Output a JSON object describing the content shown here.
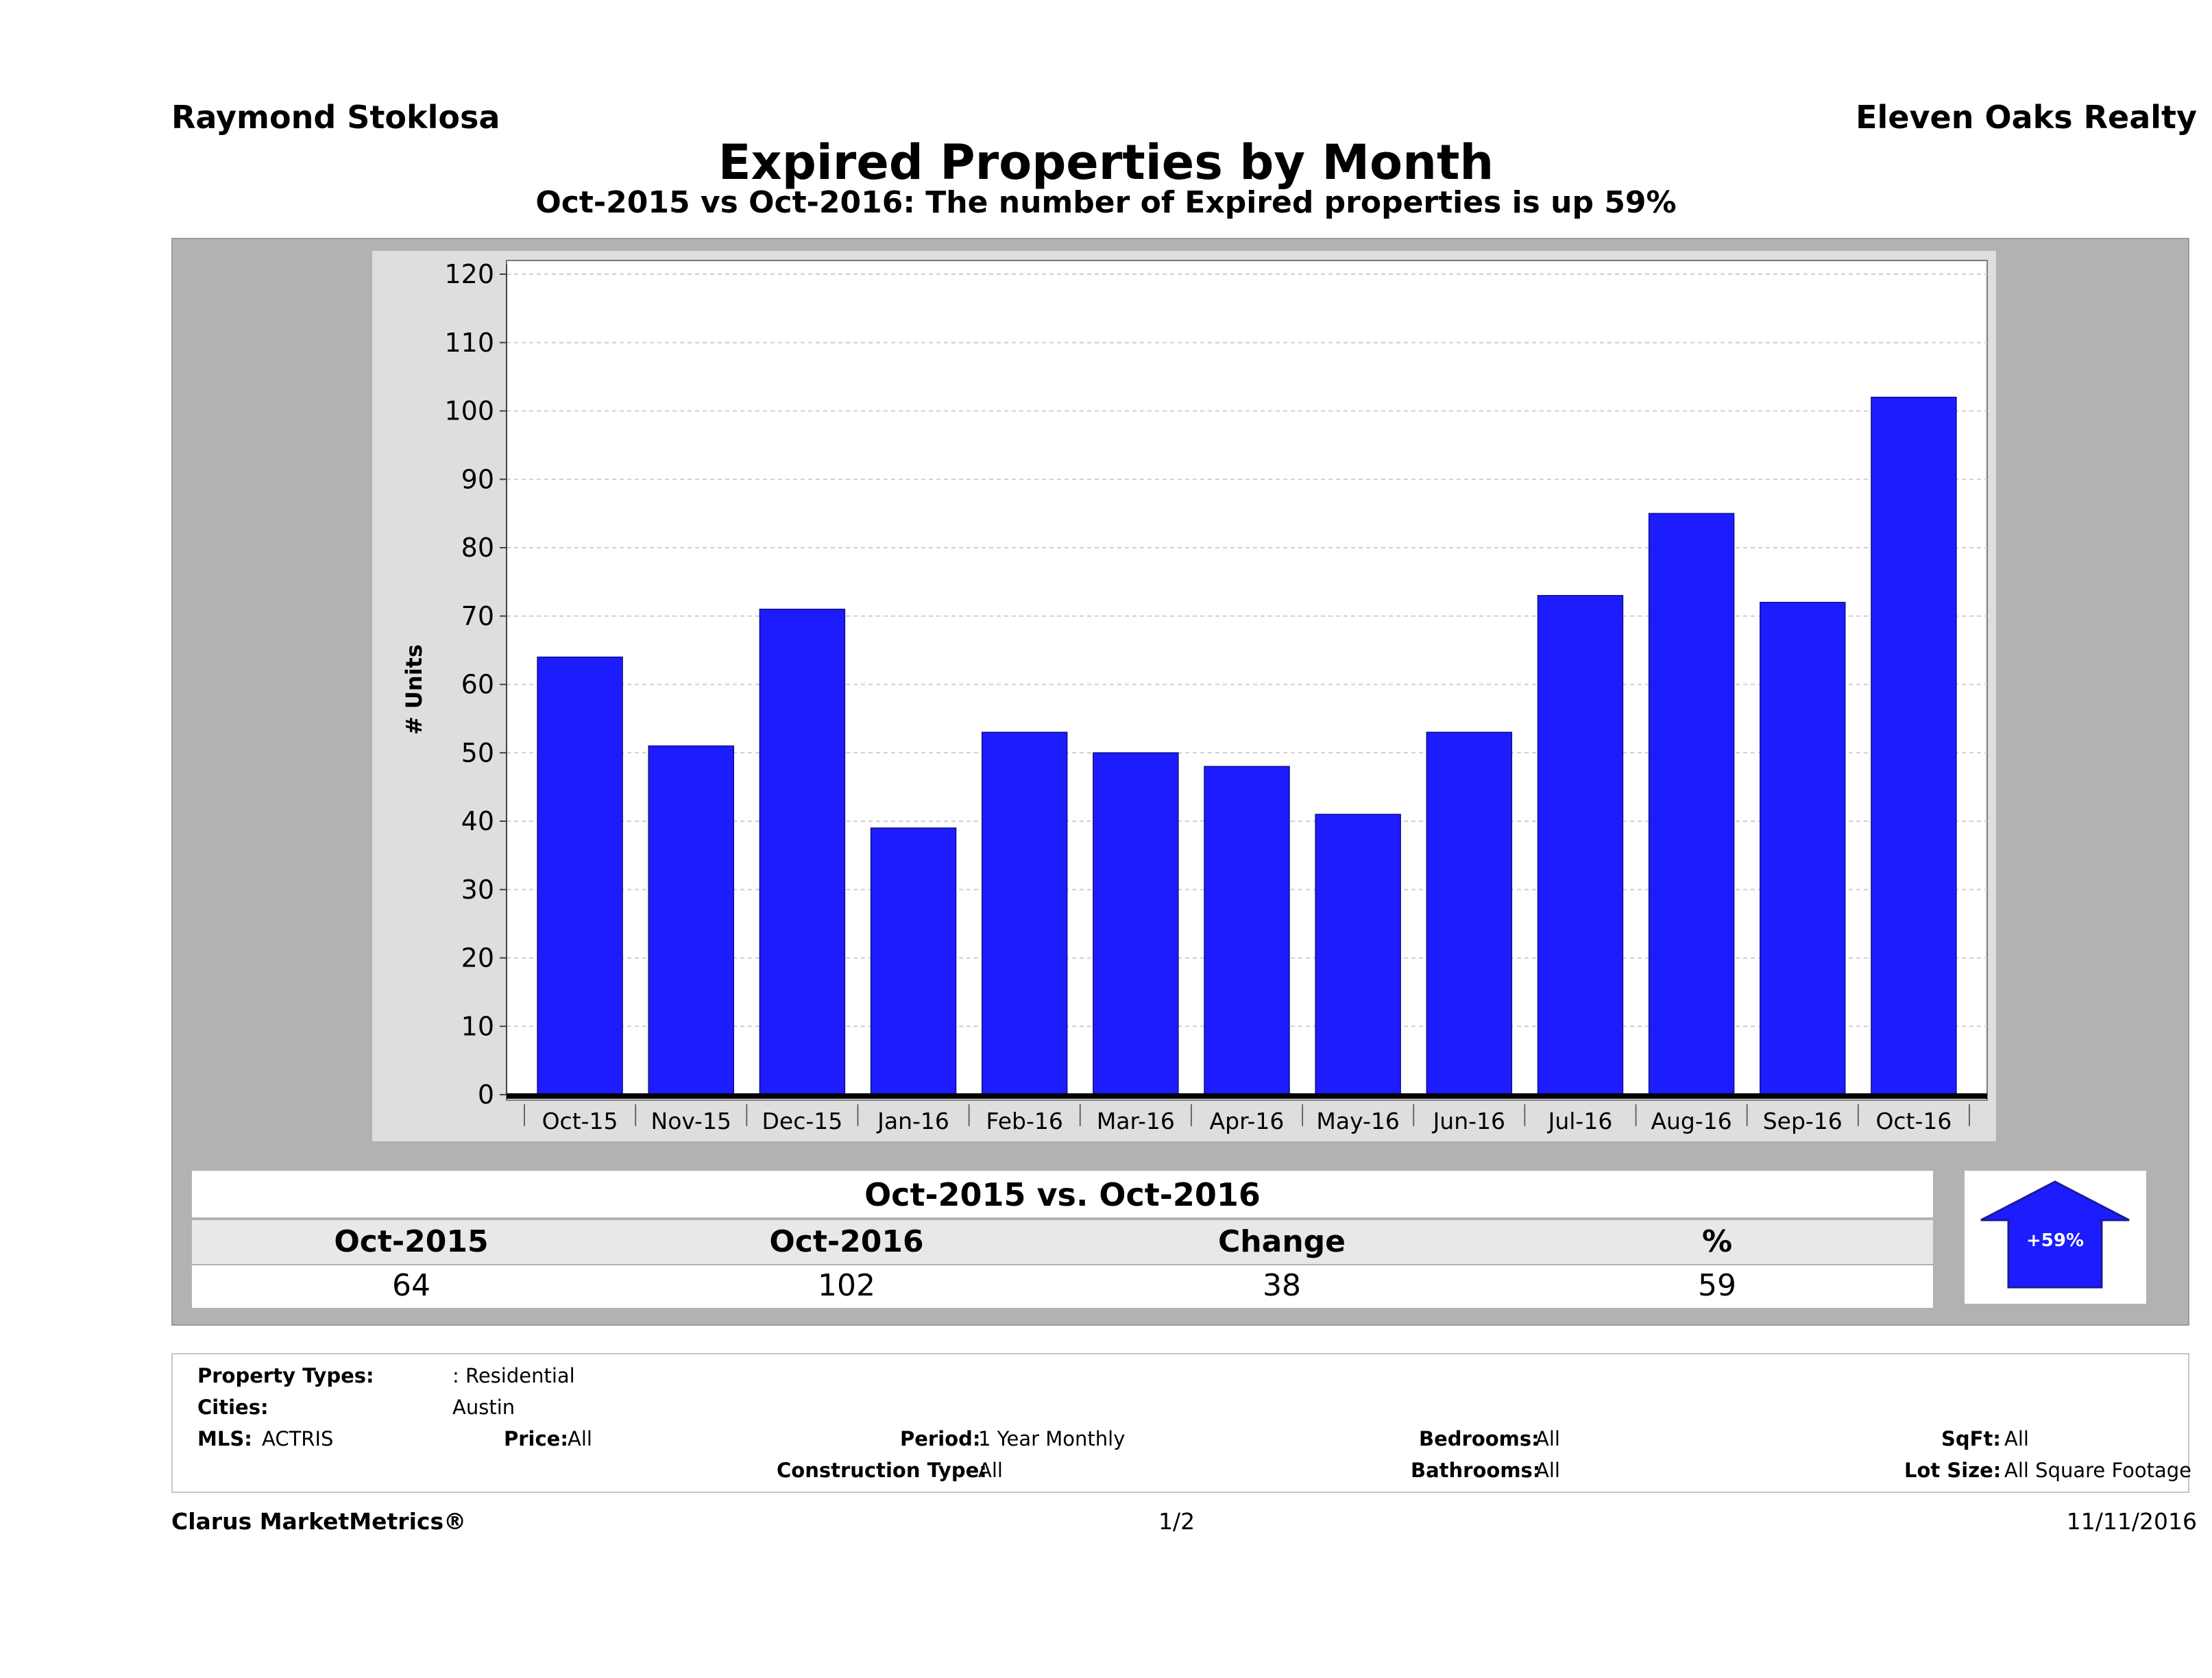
{
  "header": {
    "agent_name": "Raymond Stoklosa",
    "brokerage": "Eleven Oaks Realty",
    "title": "Expired Properties by Month",
    "subtitle": "Oct-2015 vs Oct-2016: The number of Expired   properties is up 59%"
  },
  "chart_data": {
    "type": "bar",
    "categories": [
      "Oct-15",
      "Nov-15",
      "Dec-15",
      "Jan-16",
      "Feb-16",
      "Mar-16",
      "Apr-16",
      "May-16",
      "Jun-16",
      "Jul-16",
      "Aug-16",
      "Sep-16",
      "Oct-16"
    ],
    "values": [
      64,
      51,
      71,
      39,
      53,
      50,
      48,
      41,
      53,
      73,
      85,
      72,
      102
    ],
    "ylabel": "# Units",
    "xlabel": "",
    "ylim": [
      0,
      120
    ],
    "yticks": [
      0,
      10,
      20,
      30,
      40,
      50,
      60,
      70,
      80,
      90,
      100,
      110,
      120
    ],
    "grid": true,
    "bar_color": "#1c1cff"
  },
  "comparison": {
    "title": "Oct-2015 vs. Oct-2016",
    "headers": [
      "Oct-2015",
      "Oct-2016",
      "Change",
      "%"
    ],
    "values": [
      "64",
      "102",
      "38",
      "59"
    ],
    "badge": "+59%",
    "badge_color": "#1c1cff"
  },
  "filters": {
    "property_types_label": "Property Types:",
    "property_types_value": ": Residential",
    "cities_label": "Cities:",
    "cities_value": "Austin",
    "mls_label": "MLS:",
    "mls_value": "ACTRIS",
    "price_label": "Price:",
    "price_value": "All",
    "period_label": "Period:",
    "period_value": "1 Year Monthly",
    "construction_label": "Construction Type:",
    "construction_value": "All",
    "bedrooms_label": "Bedrooms:",
    "bedrooms_value": "All",
    "bathrooms_label": "Bathrooms:",
    "bathrooms_value": "All",
    "sqft_label": "SqFt:",
    "sqft_value": "All",
    "lotsize_label": "Lot Size:",
    "lotsize_value": "All Square Footage"
  },
  "footer": {
    "brand": "Clarus MarketMetrics®",
    "page": "1/2",
    "date": "11/11/2016"
  }
}
